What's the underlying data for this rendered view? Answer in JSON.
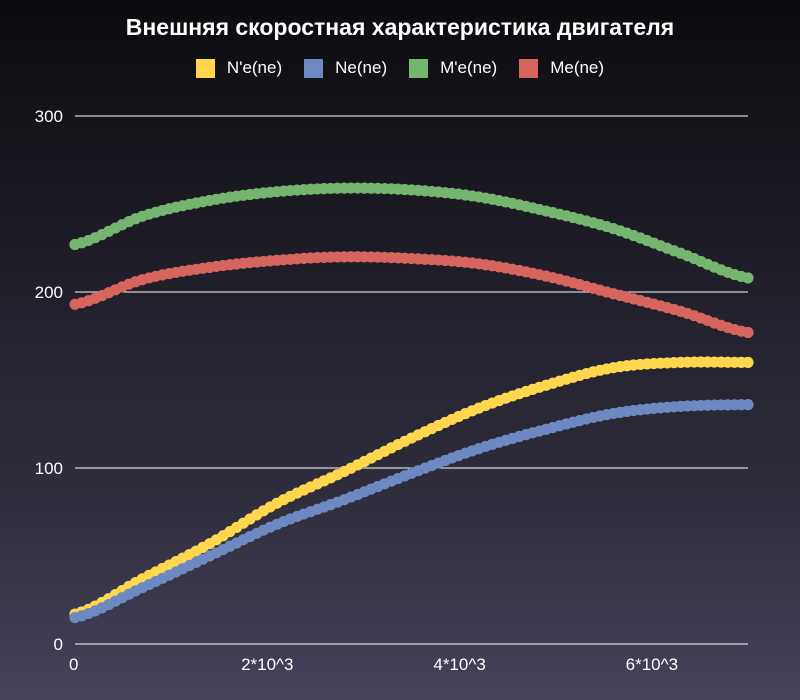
{
  "chart_data": {
    "type": "scatter",
    "title": "Внешняя скоростная характеристика двигателя",
    "xlabel": "",
    "ylabel": "",
    "xlim": [
      0,
      7000
    ],
    "ylim": [
      0,
      300
    ],
    "grid": true,
    "legend_position": "top",
    "x_ticks": [
      {
        "value": 0,
        "label": "0"
      },
      {
        "value": 2000,
        "label": "2*10^3"
      },
      {
        "value": 4000,
        "label": "4*10^3"
      },
      {
        "value": 6000,
        "label": "6*10^3"
      }
    ],
    "y_ticks": [
      {
        "value": 0,
        "label": "0"
      },
      {
        "value": 100,
        "label": "100"
      },
      {
        "value": 200,
        "label": "200"
      },
      {
        "value": 300,
        "label": "300"
      }
    ],
    "x": [
      0,
      700,
      1400,
      2100,
      2800,
      3500,
      4200,
      4900,
      5600,
      6300,
      7000
    ],
    "series": [
      {
        "name": "N'e(ne)",
        "color": "#ffd74f",
        "values": [
          17,
          37,
          57,
          80,
          98,
          117,
          134,
          147,
          157,
          160,
          160
        ]
      },
      {
        "name": "Ne(ne)",
        "color": "#6d89c1",
        "values": [
          15,
          32,
          50,
          68,
          82,
          97,
          111,
          122,
          131,
          135,
          136
        ]
      },
      {
        "name": "M'e(ne)",
        "color": "#75b56f",
        "values": [
          227,
          243,
          252,
          257,
          259,
          258,
          254,
          246,
          236,
          222,
          208
        ]
      },
      {
        "name": "Me(ne)",
        "color": "#d6665d",
        "values": [
          193,
          207,
          214,
          218,
          220,
          219,
          216,
          209,
          199,
          189,
          177
        ]
      }
    ]
  }
}
